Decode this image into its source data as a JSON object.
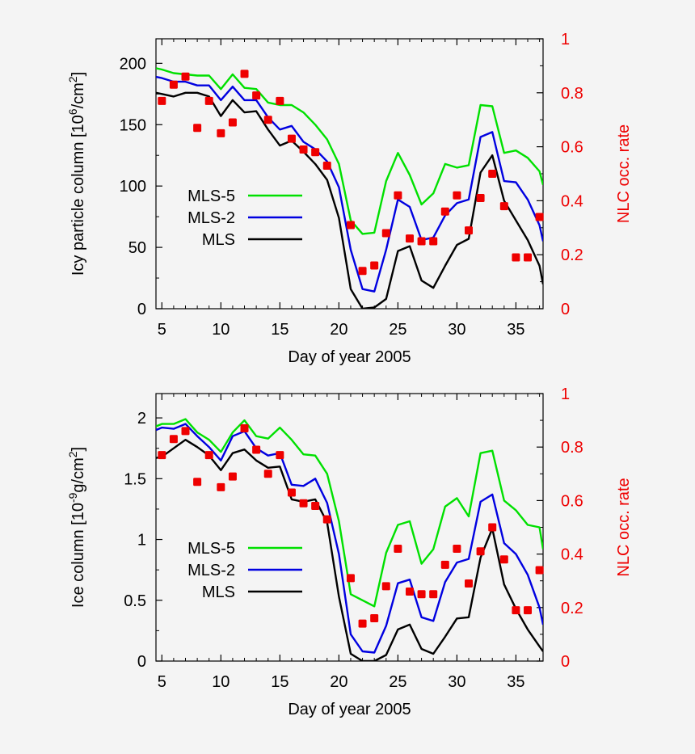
{
  "figure": {
    "background": "#f4f4f4"
  },
  "chart_data": [
    {
      "type": "line",
      "xlabel": "Day of year 2005",
      "ylabel_prefix": "Icy particle column [10",
      "ylabel_exp": "6",
      "ylabel_suffix": "/cm",
      "ylabel_sq": "2",
      "ylabel_close": "]",
      "y2label": "NLC occ. rate",
      "xlim": [
        4.5,
        37.3
      ],
      "ylim": [
        0,
        220
      ],
      "y2lim": [
        0,
        1
      ],
      "xticks": [
        5,
        10,
        15,
        20,
        25,
        30,
        35
      ],
      "xtick_labels": [
        "5",
        "10",
        "15",
        "20",
        "25",
        "30",
        "35"
      ],
      "yticks": [
        0,
        50,
        100,
        150,
        200
      ],
      "ytick_labels": [
        "0",
        "50",
        "100",
        "150",
        "200"
      ],
      "y2ticks": [
        0,
        0.2,
        0.4,
        0.6,
        0.8,
        1
      ],
      "y2tick_labels": [
        "0",
        "0.2",
        "0.4",
        "0.6",
        "0.8",
        "1"
      ],
      "legend": "left-middle",
      "x": [
        4.5,
        5,
        6,
        7,
        8,
        9,
        10,
        11,
        12,
        13,
        14,
        15,
        16,
        17,
        18,
        19,
        20,
        21,
        22,
        23,
        24,
        25,
        26,
        27,
        28,
        29,
        30,
        31,
        32,
        33,
        34,
        35,
        36,
        37,
        37.3
      ],
      "series": [
        {
          "name": "MLS-5",
          "color": "#00e000",
          "values": [
            196,
            195,
            192,
            191,
            190,
            190,
            179,
            191,
            180,
            179,
            168,
            166,
            166,
            160,
            150,
            138,
            118,
            72,
            61,
            62,
            104,
            127,
            109,
            85,
            94,
            118,
            115,
            117,
            166,
            165,
            127,
            129,
            123,
            112,
            101
          ]
        },
        {
          "name": "MLS-2",
          "color": "#0000e0",
          "values": [
            189,
            188,
            185,
            185,
            182,
            182,
            170,
            181,
            170,
            170,
            156,
            146,
            149,
            136,
            130,
            120,
            99,
            48,
            16,
            14,
            48,
            89,
            83,
            56,
            58,
            76,
            86,
            89,
            140,
            144,
            104,
            103,
            89,
            68,
            55
          ]
        },
        {
          "name": "MLS",
          "color": "#000000",
          "values": [
            176,
            175,
            173,
            176,
            176,
            173,
            157,
            170,
            160,
            161,
            146,
            133,
            137,
            128,
            118,
            105,
            74,
            16,
            0,
            1,
            8,
            47,
            51,
            23,
            17,
            35,
            52,
            57,
            111,
            125,
            88,
            72,
            56,
            35,
            20
          ]
        }
      ],
      "scatter": {
        "name": "NLC occ. rate",
        "color": "#ee0000",
        "axis": "y2",
        "x": [
          5,
          6,
          7,
          8,
          9,
          10,
          11,
          12,
          13,
          14,
          15,
          16,
          17,
          18,
          19,
          21,
          22,
          23,
          24,
          25,
          26,
          27,
          28,
          29,
          30,
          31,
          32,
          33,
          34,
          35,
          36,
          37
        ],
        "values": [
          0.77,
          0.83,
          0.86,
          0.67,
          0.77,
          0.65,
          0.69,
          0.87,
          0.79,
          0.7,
          0.77,
          0.63,
          0.59,
          0.58,
          0.53,
          0.31,
          0.14,
          0.16,
          0.28,
          0.42,
          0.26,
          0.25,
          0.25,
          0.36,
          0.42,
          0.29,
          0.41,
          0.5,
          0.38,
          0.19,
          0.19,
          0.34
        ]
      }
    },
    {
      "type": "line",
      "xlabel": "Day of year 2005",
      "ylabel_prefix": "Ice column [10",
      "ylabel_exp": "-9",
      "ylabel_suffix": "g/cm",
      "ylabel_sq": "2",
      "ylabel_close": "]",
      "y2label": "NLC occ. rate",
      "xlim": [
        4.5,
        37.3
      ],
      "ylim": [
        0,
        2.2
      ],
      "y2lim": [
        0,
        1
      ],
      "xticks": [
        5,
        10,
        15,
        20,
        25,
        30,
        35
      ],
      "xtick_labels": [
        "5",
        "10",
        "15",
        "20",
        "25",
        "30",
        "35"
      ],
      "yticks": [
        0,
        0.5,
        1,
        1.5,
        2
      ],
      "ytick_labels": [
        "0",
        "0.5",
        "1",
        "1.5",
        "2"
      ],
      "y2ticks": [
        0,
        0.2,
        0.4,
        0.6,
        0.8,
        1
      ],
      "y2tick_labels": [
        "0",
        "0.2",
        "0.4",
        "0.6",
        "0.8",
        "1"
      ],
      "legend": "left-middle",
      "x": [
        4.5,
        5,
        6,
        7,
        8,
        9,
        10,
        11,
        12,
        13,
        14,
        15,
        16,
        17,
        18,
        19,
        20,
        21,
        22,
        23,
        24,
        25,
        26,
        27,
        28,
        29,
        30,
        31,
        32,
        33,
        34,
        35,
        36,
        37,
        37.3
      ],
      "series": [
        {
          "name": "MLS-5",
          "color": "#00e000",
          "values": [
            1.93,
            1.95,
            1.95,
            1.99,
            1.88,
            1.82,
            1.72,
            1.88,
            1.98,
            1.85,
            1.83,
            1.92,
            1.82,
            1.7,
            1.69,
            1.54,
            1.15,
            0.55,
            0.5,
            0.45,
            0.89,
            1.12,
            1.15,
            0.8,
            0.92,
            1.27,
            1.34,
            1.19,
            1.71,
            1.73,
            1.32,
            1.24,
            1.12,
            1.1,
            0.92
          ]
        },
        {
          "name": "MLS-2",
          "color": "#0000e0",
          "values": [
            1.9,
            1.92,
            1.91,
            1.95,
            1.85,
            1.76,
            1.65,
            1.85,
            1.89,
            1.75,
            1.69,
            1.71,
            1.45,
            1.44,
            1.5,
            1.3,
            0.88,
            0.22,
            0.08,
            0.07,
            0.29,
            0.64,
            0.67,
            0.36,
            0.33,
            0.65,
            0.81,
            0.84,
            1.31,
            1.37,
            0.97,
            0.88,
            0.71,
            0.44,
            0.3
          ]
        },
        {
          "name": "MLS",
          "color": "#000000",
          "values": [
            1.67,
            1.68,
            1.75,
            1.82,
            1.76,
            1.69,
            1.57,
            1.71,
            1.74,
            1.65,
            1.59,
            1.6,
            1.33,
            1.31,
            1.33,
            1.14,
            0.53,
            0.06,
            0.0,
            0.0,
            0.05,
            0.26,
            0.3,
            0.1,
            0.06,
            0.2,
            0.35,
            0.36,
            0.85,
            1.09,
            0.63,
            0.43,
            0.26,
            0.12,
            0.08
          ]
        }
      ],
      "scatter": {
        "name": "NLC occ. rate",
        "color": "#ee0000",
        "axis": "y2",
        "x": [
          5,
          6,
          7,
          8,
          9,
          10,
          11,
          12,
          13,
          14,
          15,
          16,
          17,
          18,
          19,
          21,
          22,
          23,
          24,
          25,
          26,
          27,
          28,
          29,
          30,
          31,
          32,
          33,
          34,
          35,
          36,
          37
        ],
        "values": [
          0.77,
          0.83,
          0.86,
          0.67,
          0.77,
          0.65,
          0.69,
          0.87,
          0.79,
          0.7,
          0.77,
          0.63,
          0.59,
          0.58,
          0.53,
          0.31,
          0.14,
          0.16,
          0.28,
          0.42,
          0.26,
          0.25,
          0.25,
          0.36,
          0.42,
          0.29,
          0.41,
          0.5,
          0.38,
          0.19,
          0.19,
          0.34
        ]
      }
    }
  ]
}
